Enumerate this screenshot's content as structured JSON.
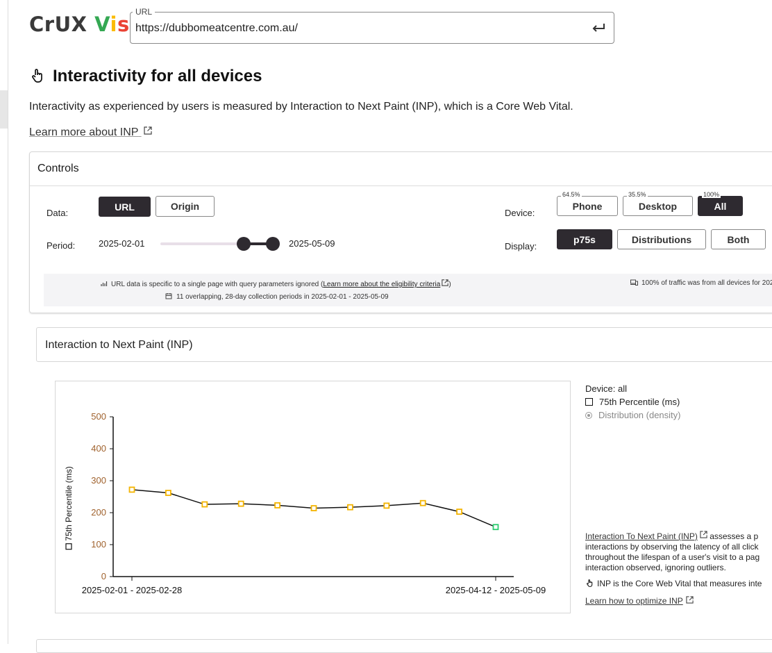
{
  "app": {
    "logo_parts": [
      {
        "text": "CrUX",
        "color": "#3a3a3a"
      },
      {
        "text": "V",
        "color": "#34a853"
      },
      {
        "text": "i",
        "color": "#fbbc04"
      },
      {
        "text": "s",
        "color": "#ea4335"
      }
    ]
  },
  "url_field": {
    "label": "URL",
    "value": "https://dubbomeatcentre.com.au/"
  },
  "page": {
    "title": "Interactivity for all devices",
    "description": "Interactivity as experienced by users is measured by Interaction to Next Paint (INP), which is a Core Web Vital.",
    "learn_more": "Learn more about INP"
  },
  "controls": {
    "title": "Controls",
    "data_label": "Data:",
    "data_options": [
      {
        "label": "URL",
        "selected": true
      },
      {
        "label": "Origin",
        "selected": false
      }
    ],
    "period_label": "Period:",
    "period_start": "2025-02-01",
    "period_end": "2025-05-09",
    "device_label": "Device:",
    "device_options": [
      {
        "label": "Phone",
        "share": "64.5%",
        "selected": false
      },
      {
        "label": "Desktop",
        "share": "35.5%",
        "selected": false
      },
      {
        "label": "All",
        "share": "100%",
        "selected": true
      }
    ],
    "display_label": "Display:",
    "display_options": [
      {
        "label": "p75s",
        "selected": true
      },
      {
        "label": "Distributions",
        "selected": false
      },
      {
        "label": "Both",
        "selected": false
      }
    ],
    "info_url_prefix": "URL data is specific to a single page with query parameters ignored (",
    "info_url_link": "Learn more about the eligibility criteria",
    "info_url_suffix": ")",
    "info_periods": "11 overlapping, 28-day collection periods in 2025-02-01 - 2025-05-09",
    "info_traffic": "100% of traffic was from all devices for 202"
  },
  "inp_section": {
    "title": "Interaction to Next Paint (INP)",
    "legend_title": "Device: all",
    "legend_p75": "75th Percentile (ms)",
    "legend_dist": "Distribution (density)",
    "about_link": "Interaction To Next Paint (INP)",
    "about_line1": " assesses a p",
    "about_line2": "interactions by observing the latency of all click",
    "about_line3": "throughout the lifespan of a user's visit to a pag",
    "about_line4": "interaction observed, ignoring outliers.",
    "cwv_text": "INP is the Core Web Vital that measures inte",
    "optimize_link": "Learn how to optimize INP"
  },
  "chart_data": {
    "type": "line",
    "ylabel": "75th Percentile (ms)",
    "ylim": [
      0,
      500
    ],
    "yticks": [
      0,
      100,
      200,
      300,
      400,
      500
    ],
    "x_labels_shown": [
      "2025-02-01 - 2025-02-28",
      "2025-04-12 - 2025-05-09"
    ],
    "series": [
      {
        "name": "75th Percentile (ms)",
        "values": [
          272,
          262,
          226,
          228,
          223,
          214,
          217,
          222,
          230,
          203,
          155
        ],
        "point_colors": [
          "#f4b400",
          "#f4b400",
          "#f4b400",
          "#f4b400",
          "#f4b400",
          "#f4b400",
          "#f4b400",
          "#f4b400",
          "#f4b400",
          "#f4b400",
          "#2ecc71"
        ]
      }
    ],
    "tick_color": "#a0622d",
    "grid": false
  }
}
